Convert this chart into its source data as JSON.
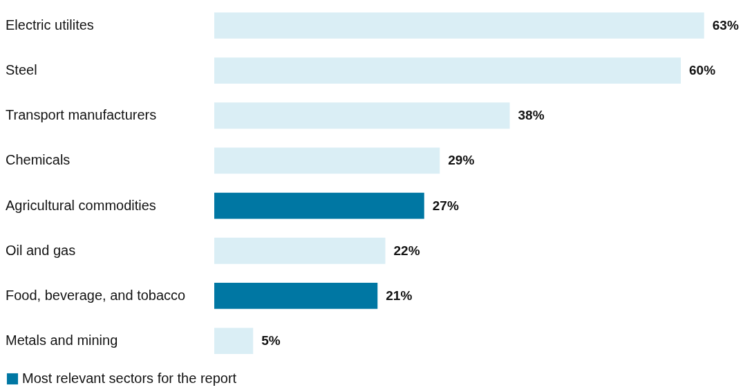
{
  "chart_data": {
    "type": "bar",
    "orientation": "horizontal",
    "stacked": true,
    "categories": [
      "Electric utilites",
      "Steel",
      "Transport manufacturers",
      "Chemicals",
      "Agricultural commodities",
      "Oil and gas",
      "Food, beverage, and tobacco",
      "Metals and mining"
    ],
    "series": [
      {
        "color": "#daeef5",
        "values": [
          63,
          60,
          38,
          29,
          null,
          22,
          null,
          5
        ],
        "value_labels": [
          "63%",
          "60%",
          "38%",
          "29%",
          null,
          "22%",
          null,
          "5%"
        ]
      },
      {
        "name": "Most relevant sectors for the report",
        "color": "#0077a3",
        "values": [
          null,
          null,
          null,
          null,
          27,
          null,
          21,
          null
        ],
        "value_labels": [
          null,
          null,
          null,
          null,
          "27%",
          null,
          "21%",
          null
        ]
      }
    ],
    "xlim": [
      0,
      68
    ],
    "tick_labels": "y",
    "legend": "bottom left"
  }
}
